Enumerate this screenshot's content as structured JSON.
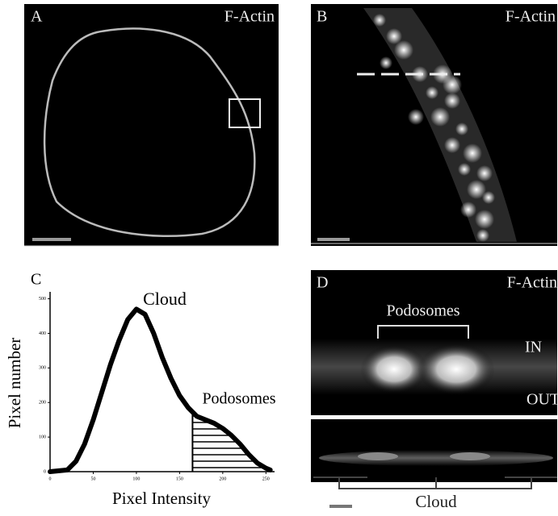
{
  "panels": {
    "a": {
      "label": "A",
      "title": "F-Actin"
    },
    "b": {
      "label": "B",
      "title": "F-Actin"
    },
    "d": {
      "label": "D",
      "title": "F-Actin",
      "annotations": [
        "Podosomes",
        "IN",
        "OUT",
        "Cloud"
      ]
    }
  },
  "chart_data": {
    "type": "line",
    "panel_label": "C",
    "x_label": "Pixel Intensity",
    "y_label": "Pixel number",
    "annotations": [
      "Cloud",
      "Podosomes"
    ],
    "x": [
      0,
      20,
      30,
      40,
      50,
      60,
      70,
      80,
      90,
      100,
      110,
      120,
      130,
      140,
      150,
      160,
      170,
      180,
      190,
      200,
      210,
      220,
      230,
      240,
      250,
      255
    ],
    "values": [
      0,
      5,
      30,
      80,
      150,
      230,
      310,
      380,
      440,
      470,
      455,
      400,
      330,
      270,
      220,
      185,
      160,
      150,
      140,
      125,
      105,
      80,
      50,
      25,
      10,
      5
    ],
    "color": "#000000",
    "hatch_from": 165,
    "xlim": [
      0,
      260
    ],
    "ylim": [
      0,
      520
    ],
    "xticks": [
      0,
      50,
      100,
      150,
      200,
      250
    ],
    "yticks": [
      0,
      100,
      200,
      300,
      400,
      500
    ]
  }
}
